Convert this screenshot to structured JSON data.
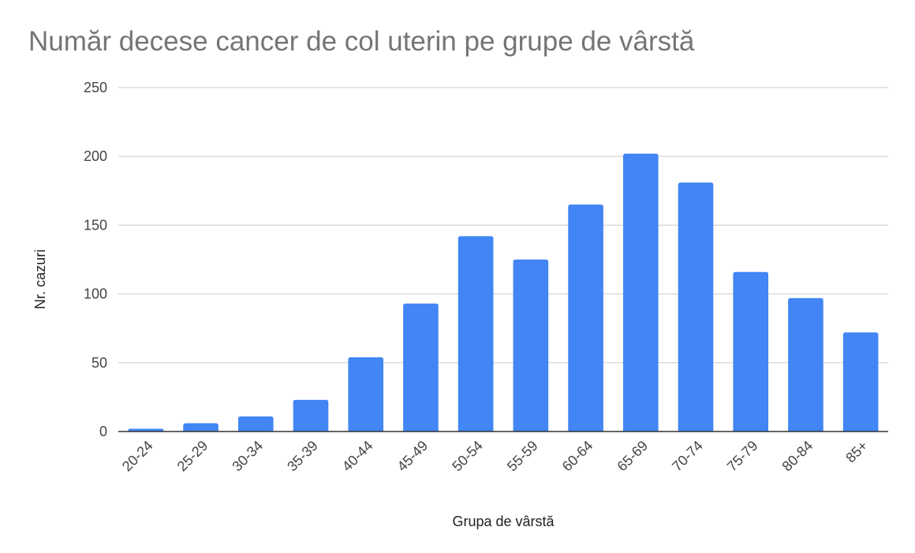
{
  "chart_data": {
    "type": "bar",
    "title": "Număr decese cancer de col uterin pe grupe de vârstă",
    "xlabel": "Grupa de vârstă",
    "ylabel": "Nr. cazuri",
    "categories": [
      "20-24",
      "25-29",
      "30-34",
      "35-39",
      "40-44",
      "45-49",
      "50-54",
      "55-59",
      "60-64",
      "65-69",
      "70-74",
      "75-79",
      "80-84",
      "85+"
    ],
    "series": [
      {
        "values": [
          2,
          6,
          11,
          23,
          54,
          93,
          142,
          125,
          165,
          202,
          181,
          116,
          97,
          72
        ],
        "color": "#4285f4"
      }
    ],
    "ylim": [
      0,
      250
    ],
    "yticks": [
      "0",
      "50",
      "100",
      "150",
      "200",
      "250"
    ],
    "grid": true,
    "legend": "none",
    "x_tick_rotation": "diagonal"
  }
}
